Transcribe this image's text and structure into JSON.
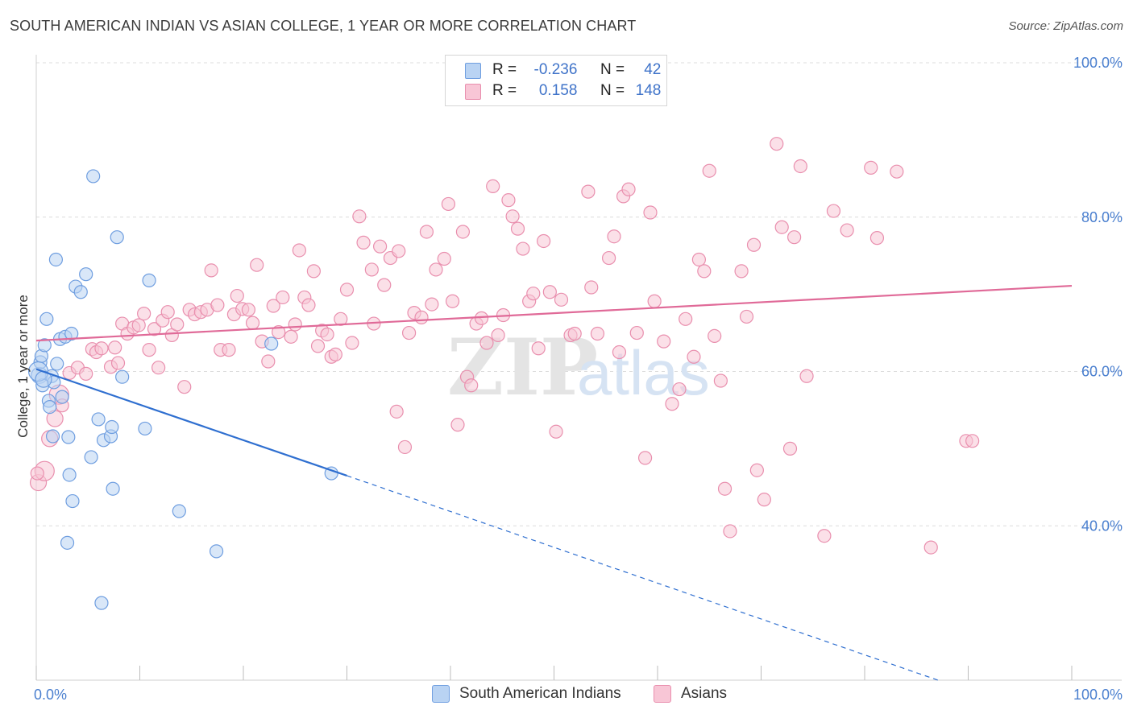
{
  "title": "SOUTH AMERICAN INDIAN VS ASIAN COLLEGE, 1 YEAR OR MORE CORRELATION CHART",
  "source": "Source: ZipAtlas.com",
  "watermark": {
    "zip": "ZIP",
    "atlas": "atlas"
  },
  "legend_top": {
    "rows": [
      {
        "r_label": "R =",
        "r_value": "-0.236",
        "n_label": "N =",
        "n_value": "42"
      },
      {
        "r_label": "R =",
        "r_value": "0.158",
        "n_label": "N =",
        "n_value": "148"
      }
    ]
  },
  "legend_bottom": {
    "items": [
      {
        "label": "South American Indians"
      },
      {
        "label": "Asians"
      }
    ]
  },
  "colors": {
    "blue_fill": "#b9d3f3",
    "blue_stroke": "#6f9ee0",
    "blue_line": "#2f6fd0",
    "pink_fill": "#f8c6d6",
    "pink_stroke": "#e98fae",
    "pink_line": "#e06a98",
    "grid": "#dcdcdc",
    "tick_text": "#4a7fcf"
  },
  "chart_data": {
    "type": "scatter",
    "title": "SOUTH AMERICAN INDIAN VS ASIAN COLLEGE, 1 YEAR OR MORE CORRELATION CHART",
    "xlabel": "",
    "ylabel": "College, 1 year or more",
    "xlim": [
      0,
      100
    ],
    "ylim": [
      20,
      100
    ],
    "x_tick_labels": [
      "0.0%",
      "100.0%"
    ],
    "y_ticks": [
      40,
      60,
      80,
      100
    ],
    "y_tick_labels": [
      "40.0%",
      "60.0%",
      "80.0%",
      "100.0%"
    ],
    "grid": true,
    "series": [
      {
        "name": "South American Indians",
        "r": -0.236,
        "n": 42,
        "trend": {
          "x0": 0,
          "y0": 60.3,
          "x1": 30,
          "y1": 46.5,
          "dashed_to_x": 100,
          "dashed_to_y": 14.0
        },
        "points": [
          [
            0.3,
            59.5,
            10
          ],
          [
            0.4,
            61.2,
            8
          ],
          [
            0.5,
            62.0,
            8
          ],
          [
            0.6,
            58.2,
            8
          ],
          [
            0.8,
            63.4,
            8
          ],
          [
            1.0,
            66.8,
            8
          ],
          [
            1.2,
            56.2,
            8
          ],
          [
            1.3,
            55.4,
            8
          ],
          [
            1.5,
            59.4,
            8
          ],
          [
            1.6,
            51.6,
            8
          ],
          [
            1.7,
            58.6,
            8
          ],
          [
            1.9,
            74.5,
            8
          ],
          [
            2.0,
            61.0,
            8
          ],
          [
            2.3,
            64.2,
            8
          ],
          [
            2.5,
            56.7,
            8
          ],
          [
            2.8,
            64.5,
            8
          ],
          [
            3.0,
            37.8,
            8
          ],
          [
            3.1,
            51.5,
            8
          ],
          [
            3.2,
            46.6,
            8
          ],
          [
            3.4,
            64.9,
            8
          ],
          [
            3.5,
            43.2,
            8
          ],
          [
            3.8,
            71.0,
            8
          ],
          [
            4.3,
            70.3,
            8
          ],
          [
            4.8,
            72.6,
            8
          ],
          [
            5.3,
            48.9,
            8
          ],
          [
            5.5,
            85.3,
            8
          ],
          [
            6.0,
            53.8,
            8
          ],
          [
            6.3,
            30.0,
            8
          ],
          [
            6.5,
            51.1,
            8
          ],
          [
            7.2,
            51.6,
            8
          ],
          [
            7.3,
            52.8,
            8
          ],
          [
            7.4,
            44.8,
            8
          ],
          [
            7.8,
            77.4,
            8
          ],
          [
            8.3,
            59.3,
            8
          ],
          [
            10.5,
            52.6,
            8
          ],
          [
            10.9,
            71.8,
            8
          ],
          [
            13.8,
            41.9,
            8
          ],
          [
            17.4,
            36.7,
            8
          ],
          [
            22.7,
            63.6,
            8
          ],
          [
            28.5,
            46.8,
            8
          ],
          [
            0.2,
            60.0,
            12
          ],
          [
            0.7,
            59.0,
            10
          ]
        ]
      },
      {
        "name": "Asians",
        "r": 0.158,
        "n": 148,
        "trend": {
          "x0": 0,
          "y0": 64.0,
          "x1": 100,
          "y1": 71.1
        },
        "points": [
          [
            0.2,
            45.6,
            10
          ],
          [
            0.8,
            47.1,
            12
          ],
          [
            1.3,
            51.3,
            10
          ],
          [
            1.8,
            53.9,
            10
          ],
          [
            2.2,
            57.0,
            12
          ],
          [
            2.5,
            55.6,
            8
          ],
          [
            3.2,
            59.8,
            8
          ],
          [
            4.0,
            60.5,
            8
          ],
          [
            4.8,
            59.7,
            8
          ],
          [
            5.4,
            62.9,
            8
          ],
          [
            5.8,
            62.5,
            8
          ],
          [
            6.3,
            63.0,
            8
          ],
          [
            7.2,
            60.6,
            8
          ],
          [
            7.6,
            63.1,
            8
          ],
          [
            7.9,
            61.1,
            8
          ],
          [
            8.3,
            66.2,
            8
          ],
          [
            8.8,
            64.9,
            8
          ],
          [
            9.4,
            65.7,
            8
          ],
          [
            9.9,
            66.0,
            8
          ],
          [
            10.4,
            67.5,
            8
          ],
          [
            10.9,
            62.8,
            8
          ],
          [
            11.4,
            65.5,
            8
          ],
          [
            11.8,
            60.5,
            8
          ],
          [
            12.2,
            66.6,
            8
          ],
          [
            12.7,
            67.7,
            8
          ],
          [
            13.1,
            64.7,
            8
          ],
          [
            13.6,
            66.1,
            8
          ],
          [
            14.3,
            58.0,
            8
          ],
          [
            14.8,
            68.0,
            8
          ],
          [
            15.3,
            67.4,
            8
          ],
          [
            15.9,
            67.7,
            8
          ],
          [
            16.5,
            68.0,
            8
          ],
          [
            16.9,
            73.1,
            8
          ],
          [
            17.5,
            68.6,
            8
          ],
          [
            17.8,
            62.8,
            8
          ],
          [
            18.6,
            62.8,
            8
          ],
          [
            19.1,
            67.4,
            8
          ],
          [
            19.4,
            69.8,
            8
          ],
          [
            19.9,
            68.1,
            8
          ],
          [
            20.5,
            68.0,
            8
          ],
          [
            20.9,
            66.3,
            8
          ],
          [
            21.3,
            73.8,
            8
          ],
          [
            21.8,
            63.9,
            8
          ],
          [
            22.4,
            61.3,
            8
          ],
          [
            22.9,
            68.5,
            8
          ],
          [
            23.4,
            65.1,
            8
          ],
          [
            23.8,
            69.6,
            8
          ],
          [
            24.6,
            64.5,
            8
          ],
          [
            25.0,
            66.1,
            8
          ],
          [
            25.4,
            75.7,
            8
          ],
          [
            25.9,
            69.6,
            8
          ],
          [
            26.3,
            68.6,
            8
          ],
          [
            26.8,
            73.0,
            8
          ],
          [
            27.2,
            63.3,
            8
          ],
          [
            27.6,
            65.3,
            8
          ],
          [
            28.1,
            64.8,
            8
          ],
          [
            28.5,
            61.9,
            8
          ],
          [
            28.9,
            62.2,
            8
          ],
          [
            29.4,
            66.8,
            8
          ],
          [
            30.0,
            70.6,
            8
          ],
          [
            30.5,
            63.7,
            8
          ],
          [
            31.2,
            80.1,
            8
          ],
          [
            31.6,
            76.7,
            8
          ],
          [
            32.4,
            73.2,
            8
          ],
          [
            32.6,
            66.2,
            8
          ],
          [
            33.2,
            76.2,
            8
          ],
          [
            33.6,
            71.2,
            8
          ],
          [
            34.2,
            74.7,
            8
          ],
          [
            34.8,
            54.8,
            8
          ],
          [
            35.0,
            75.6,
            8
          ],
          [
            35.6,
            50.2,
            8
          ],
          [
            36.0,
            65.0,
            8
          ],
          [
            36.5,
            67.6,
            8
          ],
          [
            37.2,
            67.0,
            8
          ],
          [
            37.7,
            78.1,
            8
          ],
          [
            38.2,
            68.7,
            8
          ],
          [
            38.6,
            73.2,
            8
          ],
          [
            39.4,
            74.6,
            8
          ],
          [
            39.8,
            81.7,
            8
          ],
          [
            40.2,
            69.1,
            8
          ],
          [
            40.7,
            53.1,
            8
          ],
          [
            41.2,
            78.1,
            8
          ],
          [
            41.6,
            59.3,
            8
          ],
          [
            42.0,
            58.2,
            8
          ],
          [
            42.5,
            66.2,
            8
          ],
          [
            43.0,
            66.9,
            8
          ],
          [
            43.5,
            63.7,
            8
          ],
          [
            44.1,
            84.0,
            8
          ],
          [
            44.6,
            64.7,
            8
          ],
          [
            45.1,
            67.3,
            8
          ],
          [
            45.6,
            82.2,
            8
          ],
          [
            46.0,
            80.1,
            8
          ],
          [
            46.5,
            78.5,
            8
          ],
          [
            47.0,
            75.9,
            8
          ],
          [
            47.6,
            69.1,
            8
          ],
          [
            48.0,
            70.1,
            8
          ],
          [
            48.5,
            63.0,
            8
          ],
          [
            49.0,
            76.9,
            8
          ],
          [
            49.6,
            70.3,
            8
          ],
          [
            50.2,
            52.2,
            8
          ],
          [
            50.7,
            69.3,
            8
          ],
          [
            51.6,
            64.7,
            8
          ],
          [
            52.0,
            64.9,
            8
          ],
          [
            53.3,
            83.3,
            8
          ],
          [
            53.6,
            70.9,
            8
          ],
          [
            54.2,
            64.9,
            8
          ],
          [
            55.3,
            74.7,
            8
          ],
          [
            55.8,
            77.5,
            8
          ],
          [
            56.3,
            62.5,
            8
          ],
          [
            56.7,
            82.7,
            8
          ],
          [
            57.2,
            83.6,
            8
          ],
          [
            58.0,
            65.0,
            8
          ],
          [
            58.8,
            48.8,
            8
          ],
          [
            59.3,
            80.6,
            8
          ],
          [
            59.7,
            69.1,
            8
          ],
          [
            60.6,
            63.9,
            8
          ],
          [
            61.4,
            55.8,
            8
          ],
          [
            62.1,
            57.7,
            8
          ],
          [
            62.7,
            66.8,
            8
          ],
          [
            63.5,
            61.9,
            8
          ],
          [
            64.0,
            74.5,
            8
          ],
          [
            64.5,
            73.0,
            8
          ],
          [
            65.0,
            86.0,
            8
          ],
          [
            65.5,
            64.6,
            8
          ],
          [
            66.1,
            58.8,
            8
          ],
          [
            66.5,
            44.8,
            8
          ],
          [
            67.0,
            39.3,
            8
          ],
          [
            68.1,
            73.0,
            8
          ],
          [
            68.6,
            67.1,
            8
          ],
          [
            69.3,
            76.4,
            8
          ],
          [
            69.6,
            47.2,
            8
          ],
          [
            70.3,
            43.4,
            8
          ],
          [
            71.5,
            89.5,
            8
          ],
          [
            72.0,
            78.7,
            8
          ],
          [
            72.8,
            50.0,
            8
          ],
          [
            73.2,
            77.4,
            8
          ],
          [
            73.8,
            86.6,
            8
          ],
          [
            74.4,
            59.4,
            8
          ],
          [
            76.1,
            38.7,
            8
          ],
          [
            77.0,
            80.8,
            8
          ],
          [
            78.3,
            78.3,
            8
          ],
          [
            80.6,
            86.4,
            8
          ],
          [
            81.2,
            77.3,
            8
          ],
          [
            83.1,
            85.9,
            8
          ],
          [
            86.4,
            37.2,
            8
          ],
          [
            89.8,
            51.0,
            8
          ],
          [
            90.4,
            51.0,
            8
          ],
          [
            0.1,
            46.8,
            8
          ]
        ]
      }
    ]
  }
}
